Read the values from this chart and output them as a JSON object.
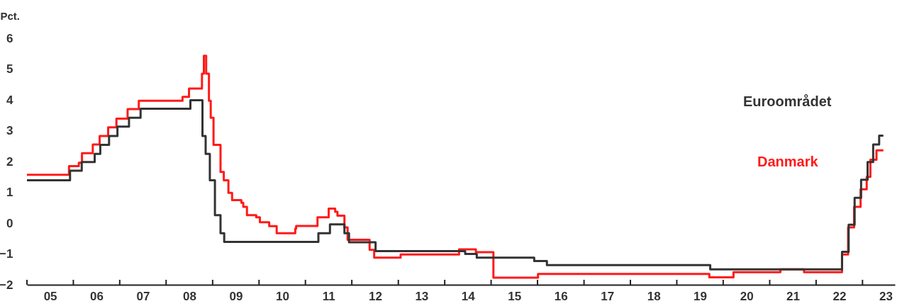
{
  "chart_data": {
    "type": "step",
    "ylabel": "Pct.",
    "xlim": [
      "2005-01-01",
      "2023-09-13"
    ],
    "ylim": [
      -2,
      6
    ],
    "yticks": [
      -2,
      -1,
      0,
      1,
      2,
      3,
      4,
      5,
      6
    ],
    "xticks": [
      {
        "value": "2005",
        "label": null
      },
      {
        "value": "2005-07-02",
        "label": "05"
      },
      {
        "value": "2006",
        "label": null
      },
      {
        "value": "2006-07-02",
        "label": "06"
      },
      {
        "value": "2007",
        "label": null
      },
      {
        "value": "2007-07-02",
        "label": "07"
      },
      {
        "value": "2008",
        "label": null
      },
      {
        "value": "2008-07-02",
        "label": "08"
      },
      {
        "value": "2009",
        "label": null
      },
      {
        "value": "2009-07-02",
        "label": "09"
      },
      {
        "value": "2010",
        "label": null
      },
      {
        "value": "2010-07-02",
        "label": "10"
      },
      {
        "value": "2011",
        "label": null
      },
      {
        "value": "2011-07-02",
        "label": "11"
      },
      {
        "value": "2012",
        "label": null
      },
      {
        "value": "2012-07-02",
        "label": "12"
      },
      {
        "value": "2013",
        "label": null
      },
      {
        "value": "2013-07-02",
        "label": "13"
      },
      {
        "value": "2014",
        "label": null
      },
      {
        "value": "2014-07-02",
        "label": "14"
      },
      {
        "value": "2015",
        "label": null
      },
      {
        "value": "2015-07-02",
        "label": "15"
      },
      {
        "value": "2016",
        "label": null
      },
      {
        "value": "2016-07-02",
        "label": "16"
      },
      {
        "value": "2017",
        "label": null
      },
      {
        "value": "2017-07-02",
        "label": "17"
      },
      {
        "value": "2018",
        "label": null
      },
      {
        "value": "2018-07-02",
        "label": "18"
      },
      {
        "value": "2019",
        "label": null
      },
      {
        "value": "2019-07-02",
        "label": "19"
      },
      {
        "value": "2020",
        "label": null
      },
      {
        "value": "2020-07-02",
        "label": "20"
      },
      {
        "value": "2021",
        "label": null
      },
      {
        "value": "2021-07-02",
        "label": "21"
      },
      {
        "value": "2022",
        "label": null
      },
      {
        "value": "2022-07-02",
        "label": "22"
      },
      {
        "value": "2023",
        "label": null
      },
      {
        "value": "2023-07-02",
        "label": "23"
      }
    ],
    "grid": false,
    "marker": "none",
    "line_style": "solid",
    "series": [
      {
        "name": "Danmark",
        "color": "#ff1a1a",
        "x": [
          "2005-01-01",
          "2005-11-28",
          "2006-02-13",
          "2006-03-10",
          "2006-06-03",
          "2006-07-27",
          "2006-10-02",
          "2006-12-06",
          "2007-03-04",
          "2007-05-31",
          "2008-05-09",
          "2008-06-29",
          "2008-10-09",
          "2008-10-24",
          "2008-11-11",
          "2008-12-03",
          "2008-12-17",
          "2009-01-08",
          "2009-03-04",
          "2009-03-30",
          "2009-05-05",
          "2009-06-03",
          "2009-08-15",
          "2009-08-30",
          "2009-09-28",
          "2009-12-10",
          "2010-01-08",
          "2010-03-22",
          "2010-05-20",
          "2010-10-13",
          "2010-10-20",
          "2011-04-06",
          "2011-07-03",
          "2011-08-23",
          "2011-09-10",
          "2011-11-04",
          "2011-11-29",
          "2012-05-20",
          "2012-06-25",
          "2013-01-19",
          "2014-04-24",
          "2014-09-03",
          "2015-01-19",
          "2016-01-05",
          "2019-09-14",
          "2020-03-22",
          "2021-03-26",
          "2021-09-28",
          "2022-07-24",
          "2022-09-10",
          "2022-10-27",
          "2022-12-17",
          "2023-02-03",
          "2023-03-04",
          "2023-04-21",
          "2023-06-14"
        ],
        "values": [
          1.57,
          1.85,
          1.96,
          2.27,
          2.55,
          2.83,
          3.11,
          3.39,
          3.7,
          3.97,
          4.1,
          4.37,
          4.85,
          5.43,
          4.85,
          3.97,
          3.42,
          2.54,
          1.66,
          1.39,
          0.98,
          0.75,
          0.66,
          0.53,
          0.26,
          0.19,
          0.03,
          -0.1,
          -0.33,
          -0.18,
          -0.09,
          0.19,
          0.47,
          0.37,
          0.24,
          -0.14,
          -0.54,
          -0.87,
          -1.12,
          -1.02,
          -0.85,
          -0.94,
          -1.77,
          -1.65,
          -1.76,
          -1.59,
          -1.5,
          -1.59,
          -1.02,
          -0.14,
          0.53,
          1.1,
          1.5,
          2.06,
          2.36,
          2.36
        ]
      },
      {
        "name": "Euroområdet",
        "color": "#333333",
        "x": [
          "2005-01-01",
          "2005-12-06",
          "2006-03-08",
          "2006-06-18",
          "2006-08-01",
          "2006-10-09",
          "2006-12-14",
          "2007-03-15",
          "2007-06-14",
          "2008-07-10",
          "2008-10-13",
          "2008-11-07",
          "2008-12-10",
          "2009-01-19",
          "2009-03-04",
          "2009-04-02",
          "2011-04-13",
          "2011-07-13",
          "2011-11-04",
          "2011-12-10",
          "2012-07-06",
          "2014-06-11",
          "2014-09-10",
          "2015-12-06",
          "2016-03-15",
          "2019-09-21",
          "2022-07-24",
          "2022-09-14",
          "2022-10-31",
          "2022-12-21",
          "2023-02-10",
          "2023-03-26",
          "2023-05-12",
          "2023-06-14"
        ],
        "values": [
          1.39,
          1.7,
          1.98,
          2.25,
          2.54,
          2.83,
          3.13,
          3.42,
          3.71,
          3.99,
          2.83,
          2.25,
          1.39,
          0.26,
          -0.33,
          -0.61,
          -0.33,
          -0.04,
          -0.33,
          -0.62,
          -0.91,
          -1.0,
          -1.12,
          -1.23,
          -1.36,
          -1.5,
          -0.93,
          -0.05,
          0.82,
          1.41,
          1.98,
          2.55,
          2.84,
          2.84
        ]
      }
    ]
  }
}
